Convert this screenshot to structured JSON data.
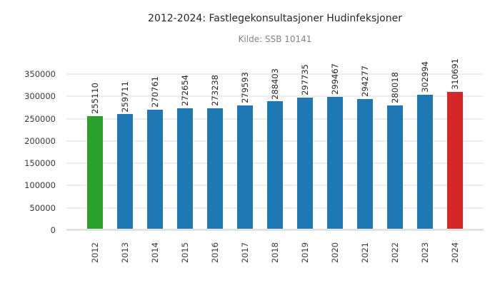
{
  "chart": {
    "title": "2012-2024: Fastlegekonsultasjoner Hudinfeksjoner",
    "subtitle": "Kilde: SSB 10141"
  },
  "chart_data": {
    "type": "bar",
    "title": "2012-2024: Fastlegekonsultasjoner Hudinfeksjoner",
    "subtitle": "Kilde: SSB 10141",
    "categories": [
      "2012",
      "2013",
      "2014",
      "2015",
      "2016",
      "2017",
      "2018",
      "2019",
      "2020",
      "2021",
      "2022",
      "2023",
      "2024"
    ],
    "values": [
      255110,
      259711,
      270761,
      272654,
      273238,
      279593,
      288403,
      297735,
      299467,
      294277,
      280018,
      302994,
      310691
    ],
    "bar_colors": [
      "#2ca02c",
      "#1f77b4",
      "#1f77b4",
      "#1f77b4",
      "#1f77b4",
      "#1f77b4",
      "#1f77b4",
      "#1f77b4",
      "#1f77b4",
      "#1f77b4",
      "#1f77b4",
      "#1f77b4",
      "#d62728"
    ],
    "value_label_rotation": 90,
    "xtick_rotation": 90,
    "xlabel": "",
    "ylabel": "",
    "yticks": [
      0,
      50000,
      100000,
      150000,
      200000,
      250000,
      300000,
      350000
    ],
    "ylim": [
      0,
      372000
    ],
    "grid": true,
    "legend": false,
    "colors": {
      "first_bar": "#2ca02c",
      "middle_bars": "#1f77b4",
      "last_bar": "#d62728",
      "gridline": "#ededed",
      "baseline": "#e2e2e2",
      "title_text": "#262626",
      "subtitle_text": "#848484",
      "tick_text": "#3a3a3a",
      "background": "#ffffff"
    }
  }
}
